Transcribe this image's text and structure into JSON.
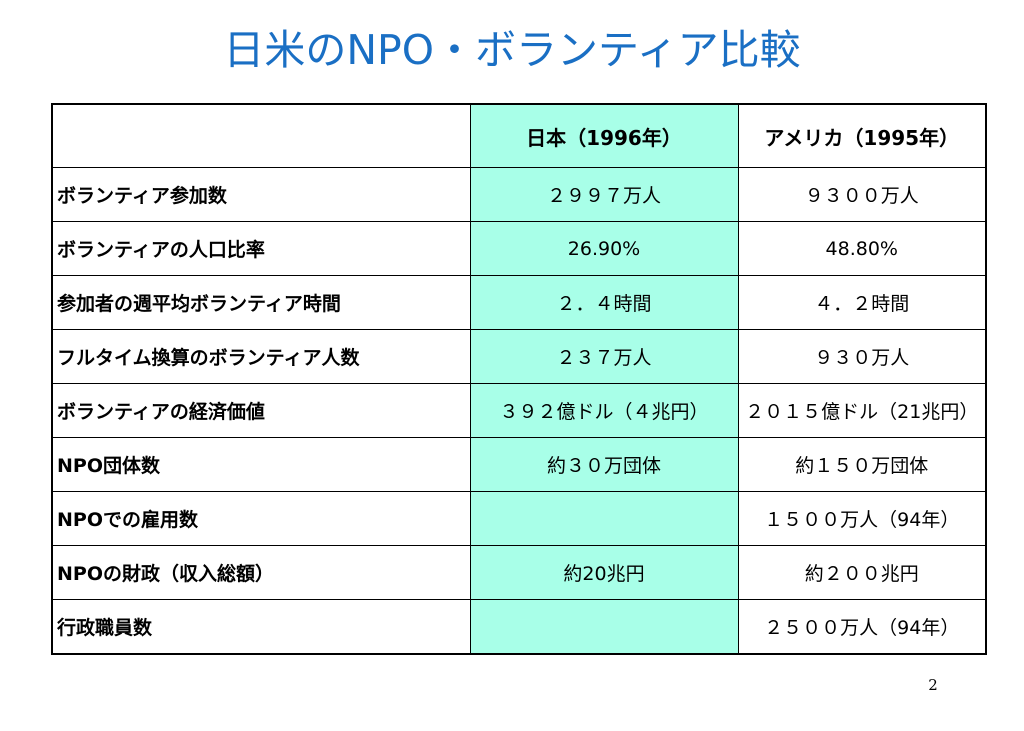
{
  "title": "日米のNPO・ボランティア比較",
  "table": {
    "columns": [
      "",
      "日本（1996年）",
      "アメリカ（1995年）"
    ],
    "rows": [
      {
        "label": "ボランティア参加数",
        "japan": "２９９７万人",
        "us": "９３００万人"
      },
      {
        "label": "ボランティアの人口比率",
        "japan": "26.90%",
        "us": "48.80%"
      },
      {
        "label": "参加者の週平均ボランティア時間",
        "japan": "２．４時間",
        "us": "４．２時間"
      },
      {
        "label": "フルタイム換算のボランティア人数",
        "japan": "２３７万人",
        "us": "９３０万人"
      },
      {
        "label": "ボランティアの経済価値",
        "japan": "３９２億ドル（４兆円）",
        "us": "２０１５億ドル（21兆円）"
      },
      {
        "label": "NPO団体数",
        "japan": "約３０万団体",
        "us": "約１５０万団体"
      },
      {
        "label": "NPOでの雇用数",
        "japan": "",
        "us": "１５００万人（94年）"
      },
      {
        "label": "NPOの財政（収入総額）",
        "japan": "約20兆円",
        "us": "約２００兆円"
      },
      {
        "label": "行政職員数",
        "japan": "",
        "us": "２５００万人（94年）"
      }
    ]
  },
  "page_number": "2",
  "colors": {
    "title": "#1a6fc4",
    "japan_column_bg": "#a8ffe8"
  }
}
